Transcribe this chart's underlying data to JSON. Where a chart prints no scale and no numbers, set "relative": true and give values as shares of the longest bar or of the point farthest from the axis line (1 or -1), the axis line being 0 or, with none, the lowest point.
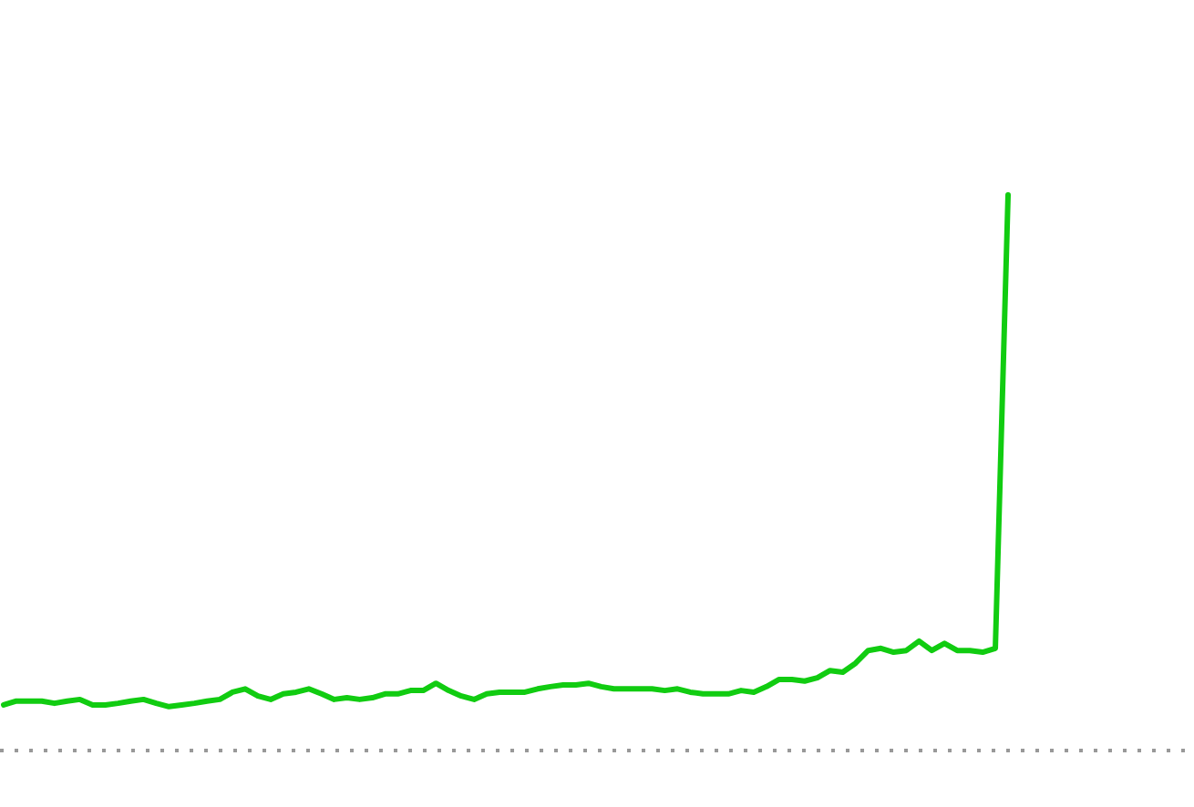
{
  "chart_data": {
    "type": "line",
    "relative": true,
    "categories": [
      null,
      null,
      null,
      null,
      null,
      null,
      null,
      null,
      null,
      null,
      null,
      null,
      null,
      null,
      null,
      null,
      null,
      null,
      null,
      null,
      null,
      null,
      null,
      null,
      null,
      null,
      null,
      null,
      null,
      null,
      null,
      null,
      null,
      null,
      null,
      null,
      null,
      null,
      null,
      null,
      null,
      null,
      null,
      null,
      null,
      null,
      null,
      null,
      null,
      null,
      null,
      null,
      null,
      null,
      null,
      null,
      null,
      null,
      null,
      null,
      null,
      null,
      null,
      null,
      null,
      null,
      null,
      null,
      null,
      null,
      null,
      null,
      null,
      null,
      null,
      null,
      null,
      null,
      null,
      null
    ],
    "series": [
      {
        "color": "#11cc11",
        "values": [
          0.082,
          0.089,
          0.089,
          0.089,
          0.085,
          0.089,
          0.092,
          0.082,
          0.082,
          0.085,
          0.089,
          0.092,
          0.085,
          0.079,
          0.082,
          0.085,
          0.089,
          0.092,
          0.105,
          0.111,
          0.098,
          0.092,
          0.102,
          0.105,
          0.111,
          0.102,
          0.092,
          0.095,
          0.092,
          0.095,
          0.102,
          0.102,
          0.108,
          0.108,
          0.121,
          0.108,
          0.098,
          0.092,
          0.102,
          0.105,
          0.105,
          0.105,
          0.111,
          0.115,
          0.118,
          0.118,
          0.121,
          0.115,
          0.111,
          0.111,
          0.111,
          0.111,
          0.108,
          0.111,
          0.105,
          0.102,
          0.102,
          0.102,
          0.108,
          0.105,
          0.115,
          0.128,
          0.128,
          0.125,
          0.131,
          0.144,
          0.141,
          0.157,
          0.18,
          0.184,
          0.177,
          0.18,
          0.197,
          0.18,
          0.193,
          0.18,
          0.18,
          0.177,
          0.184,
          1
        ]
      }
    ],
    "marker": "none",
    "line_style": "solid"
  }
}
